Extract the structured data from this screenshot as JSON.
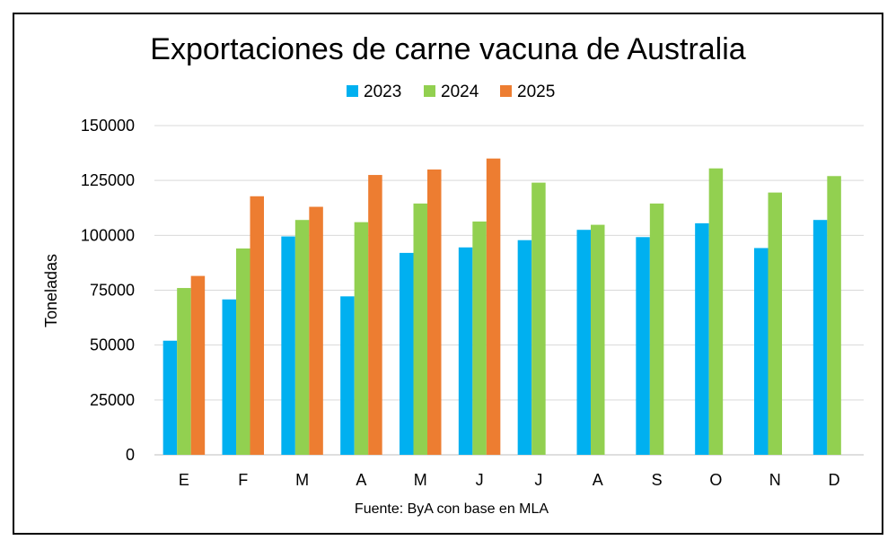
{
  "chart_data": {
    "type": "bar",
    "title": "Exportaciones de carne vacuna de Australia",
    "ylabel": "Toneladas",
    "xlabel": "",
    "source": "Fuente: ByA con base en MLA",
    "categories": [
      "E",
      "F",
      "M",
      "A",
      "M",
      "J",
      "J",
      "A",
      "S",
      "O",
      "N",
      "D"
    ],
    "ylim": [
      0,
      150000
    ],
    "yticks": [
      0,
      25000,
      50000,
      75000,
      100000,
      125000,
      150000
    ],
    "grid": true,
    "legend_position": "top",
    "series": [
      {
        "name": "2023",
        "color": "#00B0F0",
        "values": [
          52000,
          70800,
          99500,
          72200,
          92000,
          94500,
          97800,
          102500,
          99200,
          105500,
          94200,
          107000
        ]
      },
      {
        "name": "2024",
        "color": "#92D050",
        "values": [
          76000,
          94000,
          107000,
          106000,
          114500,
          106300,
          124000,
          104800,
          114500,
          130500,
          119500,
          127000
        ]
      },
      {
        "name": "2025",
        "color": "#ED7D31",
        "values": [
          81500,
          117800,
          113000,
          127500,
          130000,
          135000,
          null,
          null,
          null,
          null,
          null,
          null
        ]
      }
    ]
  }
}
